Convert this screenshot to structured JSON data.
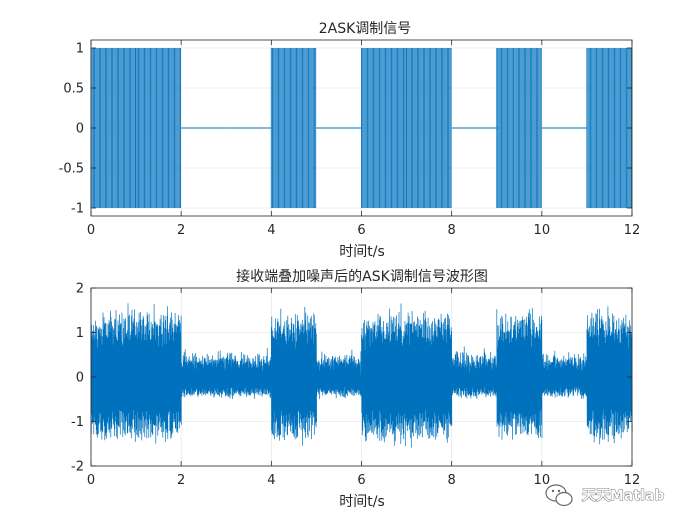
{
  "chart_data": [
    {
      "type": "line",
      "title": "2ASK调制信号",
      "xlabel": "时间t/s",
      "ylabel": "",
      "xlim": [
        0,
        12
      ],
      "ylim": [
        -1.1,
        1.1
      ],
      "xticks": [
        0,
        2,
        4,
        6,
        8,
        10,
        12
      ],
      "xtick_labels": [
        "0",
        "2",
        "4",
        "6",
        "8",
        "10",
        "12"
      ],
      "yticks": [
        1,
        0.5,
        0,
        -0.5,
        -1
      ],
      "ytick_labels": [
        "1",
        "0.5",
        "0",
        "-0.5",
        "-1"
      ],
      "grid": true,
      "color": "#0072BD",
      "bits": [
        1,
        1,
        0,
        0,
        1,
        0,
        1,
        1,
        0,
        1,
        0,
        1
      ],
      "envelope_on": 1.0,
      "envelope_off": 0.0
    },
    {
      "type": "line",
      "title": "接收端叠加噪声后的ASK调制信号波形图",
      "xlabel": "时间t/s",
      "ylabel": "",
      "xlim": [
        0,
        12
      ],
      "ylim": [
        -2,
        2
      ],
      "xticks": [
        0,
        2,
        4,
        6,
        8,
        10,
        12
      ],
      "xtick_labels": [
        "0",
        "2",
        "4",
        "6",
        "8",
        "10",
        "12"
      ],
      "yticks": [
        2,
        1,
        0,
        -1,
        -2
      ],
      "ytick_labels": [
        "2",
        "1",
        "0",
        "-1",
        "-2"
      ],
      "grid": true,
      "color": "#0072BD",
      "bits": [
        1,
        1,
        0,
        0,
        1,
        0,
        1,
        1,
        0,
        1,
        0,
        1
      ],
      "envelope_on": 1.3,
      "envelope_off": 0.4
    }
  ],
  "watermark": {
    "text": "天天Matlab",
    "icon": "wechat-icon"
  }
}
